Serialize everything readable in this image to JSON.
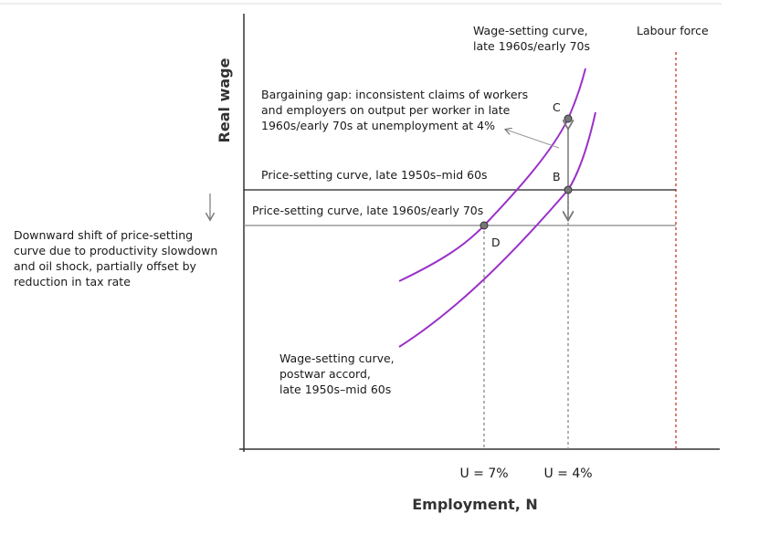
{
  "axes": {
    "y_label": "Real wage",
    "x_label": "Employment, N",
    "x_ticks": [
      "U = 7%",
      "U = 4%"
    ]
  },
  "curves": {
    "wage_setting_late": [
      "Wage-setting curve,",
      "late 1960s/early 70s"
    ],
    "wage_setting_postwar": [
      "Wage-setting curve,",
      "postwar accord,",
      "late 1950s–mid 60s"
    ],
    "price_setting_early": "Price-setting curve, late 1950s–mid 60s",
    "price_setting_late": "Price-setting curve, late 1960s/early 70s",
    "labour_force": "Labour force"
  },
  "points": [
    "C",
    "B",
    "D"
  ],
  "annotations": {
    "bargaining_gap": [
      "Bargaining gap: inconsistent claims of workers",
      "and employers on output per worker in late",
      "1960s/early 70s at unemployment at 4%"
    ],
    "downward_shift": [
      "Downward shift of price-setting",
      "curve due to productivity slowdown",
      "and oil shock, partially offset by",
      "reduction in tax rate"
    ]
  }
}
